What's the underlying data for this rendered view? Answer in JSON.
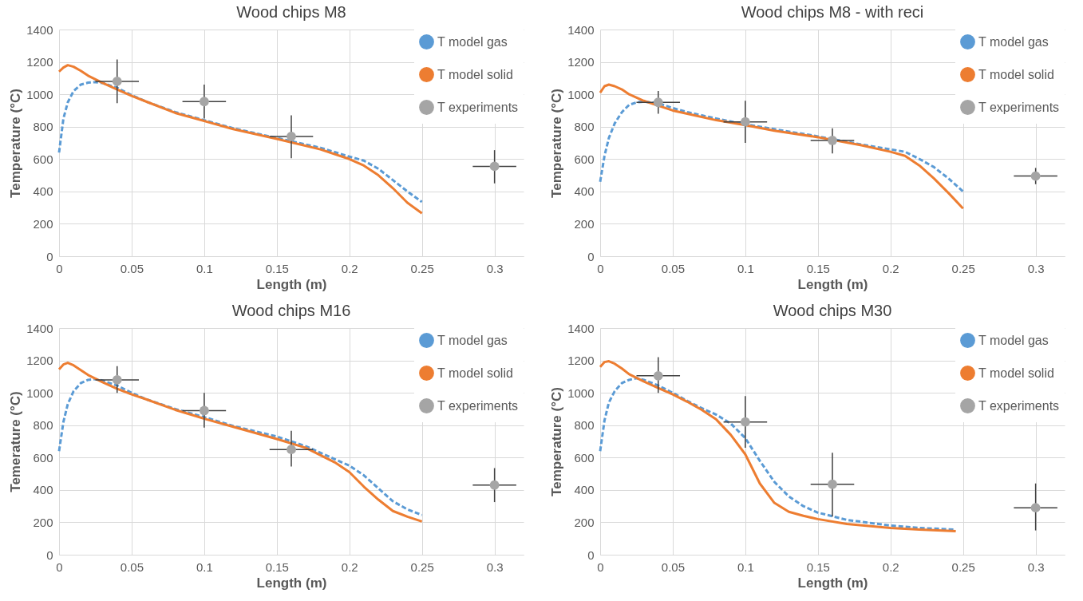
{
  "chart_data": [
    {
      "type": "line",
      "title": "Wood chips M8",
      "xlabel": "Length (m)",
      "ylabel": "Temperature (°C)",
      "xlim": [
        0,
        0.32
      ],
      "xticks": [
        0,
        0.05,
        0.1,
        0.15,
        0.2,
        0.25,
        0.3
      ],
      "ylim": [
        0,
        1400
      ],
      "yticks": [
        0,
        200,
        400,
        600,
        800,
        1000,
        1200,
        1400
      ],
      "grid": true,
      "legend": "top right",
      "series": [
        {
          "name": "T model gas",
          "color": "#5b9bd5",
          "line_style": "dashed",
          "marker": "none",
          "x": [
            0,
            0.003,
            0.006,
            0.01,
            0.015,
            0.02,
            0.025,
            0.03,
            0.04,
            0.05,
            0.06,
            0.08,
            0.1,
            0.12,
            0.15,
            0.18,
            0.2,
            0.21,
            0.22,
            0.23,
            0.24,
            0.25
          ],
          "values": [
            640,
            850,
            950,
            1020,
            1060,
            1072,
            1075,
            1070,
            1040,
            995,
            955,
            890,
            840,
            790,
            730,
            670,
            615,
            590,
            540,
            470,
            400,
            335
          ]
        },
        {
          "name": "T model solid",
          "color": "#ed7d31",
          "line_style": "solid",
          "marker": "none",
          "x": [
            0,
            0.003,
            0.006,
            0.01,
            0.015,
            0.02,
            0.03,
            0.04,
            0.05,
            0.06,
            0.08,
            0.1,
            0.12,
            0.15,
            0.18,
            0.2,
            0.21,
            0.22,
            0.23,
            0.24,
            0.25
          ],
          "values": [
            1140,
            1165,
            1180,
            1170,
            1145,
            1115,
            1070,
            1030,
            990,
            955,
            885,
            835,
            785,
            725,
            660,
            600,
            560,
            500,
            420,
            330,
            265
          ]
        },
        {
          "name": "T experiments",
          "type": "scatter",
          "color": "#a5a5a5",
          "marker": "circle",
          "x": [
            0.04,
            0.1,
            0.16,
            0.3
          ],
          "values": [
            1080,
            955,
            740,
            555
          ],
          "errors": [
            [
              945,
              1215
            ],
            [
              850,
              1060
            ],
            [
              605,
              870
            ],
            [
              450,
              655
            ]
          ],
          "xerrors": [
            0.015,
            0.015,
            0.015,
            0.015
          ]
        }
      ]
    },
    {
      "type": "line",
      "title": "Wood chips M8 - with reci",
      "xlabel": "Length (m)",
      "ylabel": "Temperature (°C)",
      "xlim": [
        0,
        0.32
      ],
      "xticks": [
        0,
        0.05,
        0.1,
        0.15,
        0.2,
        0.25,
        0.3
      ],
      "ylim": [
        0,
        1400
      ],
      "yticks": [
        0,
        200,
        400,
        600,
        800,
        1000,
        1200,
        1400
      ],
      "grid": true,
      "legend": "top right",
      "series": [
        {
          "name": "T model gas",
          "color": "#5b9bd5",
          "line_style": "dashed",
          "marker": "none",
          "x": [
            0,
            0.003,
            0.006,
            0.01,
            0.015,
            0.02,
            0.025,
            0.03,
            0.04,
            0.05,
            0.06,
            0.08,
            0.1,
            0.12,
            0.15,
            0.18,
            0.2,
            0.21,
            0.22,
            0.23,
            0.24,
            0.25
          ],
          "values": [
            460,
            620,
            730,
            820,
            890,
            935,
            950,
            955,
            945,
            915,
            890,
            850,
            815,
            785,
            740,
            690,
            660,
            645,
            600,
            550,
            480,
            400
          ]
        },
        {
          "name": "T model solid",
          "color": "#ed7d31",
          "line_style": "solid",
          "marker": "none",
          "x": [
            0,
            0.003,
            0.006,
            0.01,
            0.015,
            0.02,
            0.03,
            0.04,
            0.05,
            0.06,
            0.08,
            0.1,
            0.12,
            0.15,
            0.18,
            0.2,
            0.21,
            0.22,
            0.23,
            0.24,
            0.25
          ],
          "values": [
            1010,
            1050,
            1060,
            1050,
            1030,
            1000,
            960,
            930,
            900,
            880,
            840,
            810,
            775,
            735,
            685,
            645,
            620,
            560,
            480,
            390,
            295
          ]
        },
        {
          "name": "T experiments",
          "type": "scatter",
          "color": "#a5a5a5",
          "marker": "circle",
          "x": [
            0.04,
            0.1,
            0.16,
            0.3
          ],
          "values": [
            950,
            830,
            715,
            495
          ],
          "errors": [
            [
              880,
              1020
            ],
            [
              700,
              960
            ],
            [
              635,
              790
            ],
            [
              445,
              545
            ]
          ],
          "xerrors": [
            0.015,
            0.015,
            0.015,
            0.015
          ]
        }
      ]
    },
    {
      "type": "line",
      "title": "Wood chips M16",
      "xlabel": "Length (m)",
      "ylabel": "Temerature (°C)",
      "xlim": [
        0,
        0.32
      ],
      "xticks": [
        0,
        0.05,
        0.1,
        0.15,
        0.2,
        0.25,
        0.3
      ],
      "ylim": [
        0,
        1400
      ],
      "yticks": [
        0,
        200,
        400,
        600,
        800,
        1000,
        1200,
        1400
      ],
      "grid": true,
      "legend": "top right",
      "series": [
        {
          "name": "T model gas",
          "color": "#5b9bd5",
          "line_style": "dashed",
          "marker": "none",
          "x": [
            0,
            0.003,
            0.006,
            0.01,
            0.015,
            0.02,
            0.025,
            0.03,
            0.04,
            0.05,
            0.06,
            0.08,
            0.1,
            0.12,
            0.15,
            0.17,
            0.19,
            0.2,
            0.21,
            0.22,
            0.23,
            0.24,
            0.25
          ],
          "values": [
            640,
            820,
            930,
            1010,
            1060,
            1080,
            1085,
            1075,
            1045,
            1000,
            960,
            900,
            850,
            795,
            730,
            670,
            590,
            550,
            490,
            410,
            330,
            280,
            245
          ]
        },
        {
          "name": "T model solid",
          "color": "#ed7d31",
          "line_style": "solid",
          "marker": "none",
          "x": [
            0,
            0.003,
            0.006,
            0.01,
            0.015,
            0.02,
            0.03,
            0.04,
            0.05,
            0.06,
            0.08,
            0.1,
            0.12,
            0.15,
            0.17,
            0.19,
            0.2,
            0.21,
            0.22,
            0.23,
            0.24,
            0.25
          ],
          "values": [
            1145,
            1175,
            1185,
            1170,
            1140,
            1110,
            1065,
            1025,
            990,
            960,
            895,
            840,
            790,
            715,
            660,
            570,
            510,
            420,
            340,
            270,
            235,
            205
          ]
        },
        {
          "name": "T experiments",
          "type": "scatter",
          "color": "#a5a5a5",
          "marker": "circle",
          "x": [
            0.04,
            0.1,
            0.16,
            0.3
          ],
          "values": [
            1080,
            890,
            650,
            430
          ],
          "errors": [
            [
              1000,
              1165
            ],
            [
              785,
              1000
            ],
            [
              545,
              765
            ],
            [
              325,
              535
            ]
          ],
          "xerrors": [
            0.015,
            0.015,
            0.015,
            0.015
          ]
        }
      ]
    },
    {
      "type": "line",
      "title": "Wood chips M30",
      "xlabel": "Length (m)",
      "ylabel": "Temperature (°C)",
      "xlim": [
        0,
        0.32
      ],
      "xticks": [
        0,
        0.05,
        0.1,
        0.15,
        0.2,
        0.25,
        0.3
      ],
      "ylim": [
        0,
        1400
      ],
      "yticks": [
        0,
        200,
        400,
        600,
        800,
        1000,
        1200,
        1400
      ],
      "grid": true,
      "legend": "top right",
      "series": [
        {
          "name": "T model gas",
          "color": "#5b9bd5",
          "line_style": "dashed",
          "marker": "none",
          "x": [
            0,
            0.003,
            0.006,
            0.01,
            0.015,
            0.02,
            0.025,
            0.03,
            0.04,
            0.05,
            0.06,
            0.07,
            0.08,
            0.09,
            0.1,
            0.11,
            0.12,
            0.13,
            0.14,
            0.15,
            0.17,
            0.2,
            0.22,
            0.245
          ],
          "values": [
            640,
            830,
            940,
            1010,
            1060,
            1080,
            1090,
            1080,
            1045,
            1000,
            950,
            905,
            865,
            810,
            720,
            580,
            450,
            360,
            300,
            260,
            215,
            180,
            165,
            155
          ]
        },
        {
          "name": "T model solid",
          "color": "#ed7d31",
          "line_style": "solid",
          "marker": "none",
          "x": [
            0,
            0.003,
            0.006,
            0.01,
            0.015,
            0.02,
            0.03,
            0.04,
            0.05,
            0.06,
            0.07,
            0.08,
            0.09,
            0.1,
            0.11,
            0.12,
            0.13,
            0.14,
            0.15,
            0.17,
            0.2,
            0.22,
            0.245
          ],
          "values": [
            1160,
            1190,
            1195,
            1180,
            1150,
            1115,
            1070,
            1030,
            990,
            945,
            895,
            835,
            740,
            620,
            440,
            320,
            265,
            240,
            220,
            190,
            165,
            155,
            145
          ]
        },
        {
          "name": "T experiments",
          "type": "scatter",
          "color": "#a5a5a5",
          "marker": "circle",
          "x": [
            0.04,
            0.1,
            0.16,
            0.3
          ],
          "values": [
            1105,
            820,
            435,
            290
          ],
          "errors": [
            [
              1000,
              1220
            ],
            [
              660,
              980
            ],
            [
              235,
              630
            ],
            [
              150,
              440
            ]
          ],
          "xerrors": [
            0.015,
            0.015,
            0.015,
            0.015
          ]
        }
      ]
    }
  ]
}
